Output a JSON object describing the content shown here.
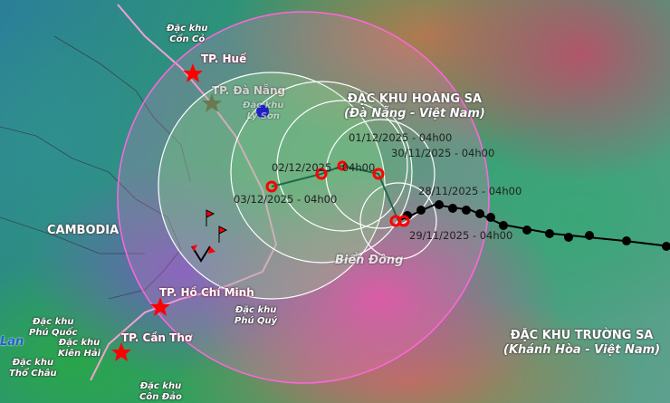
{
  "map": {
    "cities": [
      {
        "name": "TP. Huế"
      },
      {
        "name": "TP. Đà Nẵng"
      },
      {
        "name": "TP. Hồ Chí Minh"
      },
      {
        "name": "TP. Cần Thơ"
      }
    ],
    "special_zones": [
      "Đặc khu\nCồn Cỏ",
      "Đặc khu\nLý Sơn",
      "Đặc khu\nPhú Quý",
      "Đặc khu\nPhú Quốc",
      "Đặc khu\nKiên Hải",
      "Đặc khu\nThổ Châu",
      "Đặc khu\nCôn Đảo"
    ],
    "regions": {
      "cambodia": "CAMBODIA",
      "thailand_partial": "Lan",
      "bien_dong": "Biển Đông",
      "hoang_sa": "ĐẶC KHU HOÀNG SA",
      "hoang_sa_sub": "(Đà Nẵng - Việt Nam)",
      "truong_sa": "ĐẶC KHU TRƯỜNG SA",
      "truong_sa_sub": "(Khánh Hòa - Việt Nam)"
    },
    "forecast_labels": [
      "01/12/2025 - 04h00",
      "02/12/2025 - 04h00",
      "30/11/2025 - 04h00",
      "03/12/2025 - 04h00",
      "29/11/2025 - 04h00",
      "28/11/2025 - 04h00"
    ],
    "colors": {
      "danger_zone": "#ff66dd",
      "forecast_marker": "#ff0000",
      "past_track": "#000000",
      "uncertainty_cone": "#ffffff"
    }
  }
}
